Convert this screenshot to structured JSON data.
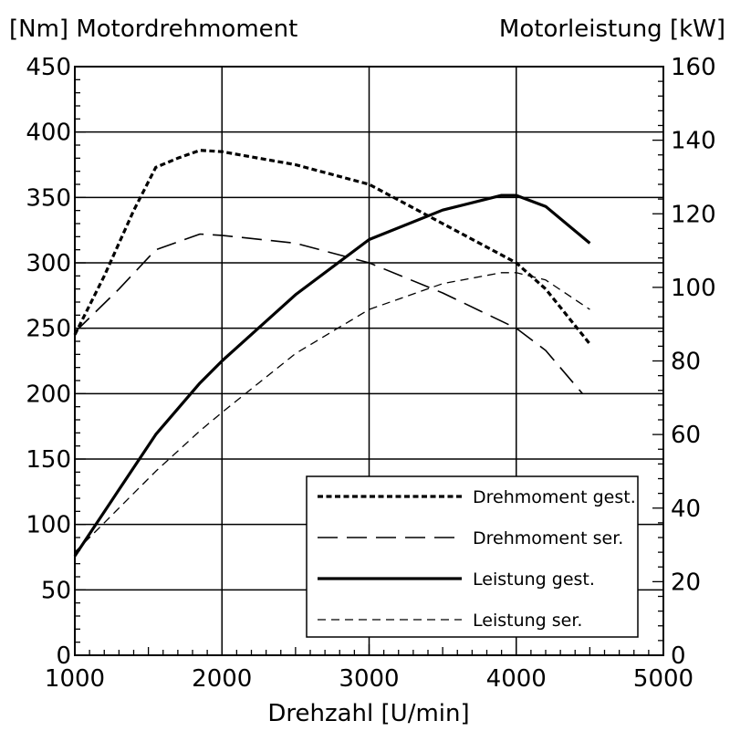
{
  "chart_data": {
    "type": "line",
    "left_axis_title": "[Nm] Motordrehmoment",
    "right_axis_title": "Motorleistung [kW]",
    "xlabel": "Drehzahl [U/min]",
    "xlim": [
      1000,
      5000
    ],
    "ylim_left": [
      0,
      450
    ],
    "ylim_right": [
      0,
      160
    ],
    "x_ticks": [
      "1000",
      "2000",
      "3000",
      "4000",
      "5000"
    ],
    "y_left_ticks": [
      "0",
      "50",
      "100",
      "150",
      "200",
      "250",
      "300",
      "350",
      "400",
      "450"
    ],
    "y_right_ticks": [
      "0",
      "20",
      "40",
      "60",
      "80",
      "100",
      "120",
      "140",
      "160"
    ],
    "grid": true,
    "legend_position": "bottom-right",
    "series": [
      {
        "name": "Drehmoment gest.",
        "axis": "left",
        "style": "dotted-thick",
        "color": "#000000",
        "x": [
          1000,
          1200,
          1400,
          1550,
          1700,
          1850,
          2000,
          2500,
          3000,
          3500,
          4000,
          4200,
          4500
        ],
        "y": [
          245,
          290,
          340,
          373,
          380,
          386,
          385,
          375,
          360,
          330,
          300,
          280,
          238
        ]
      },
      {
        "name": "Drehmoment ser.",
        "axis": "left",
        "style": "long-dash",
        "color": "#000000",
        "x": [
          1000,
          1300,
          1550,
          1850,
          2000,
          2500,
          3000,
          3500,
          4000,
          4200,
          4450
        ],
        "y": [
          247,
          280,
          310,
          322,
          321,
          315,
          300,
          277,
          250,
          233,
          200
        ]
      },
      {
        "name": "Leistung gest.",
        "axis": "right",
        "style": "solid-thick",
        "color": "#000000",
        "x": [
          1000,
          1250,
          1550,
          1850,
          2000,
          2500,
          3000,
          3500,
          3900,
          4000,
          4200,
          4500
        ],
        "y": [
          27,
          42,
          60,
          74,
          80,
          98,
          113,
          121,
          125,
          125,
          122,
          112
        ]
      },
      {
        "name": "Leistung ser.",
        "axis": "right",
        "style": "short-dash",
        "color": "#000000",
        "x": [
          1000,
          1550,
          1850,
          2000,
          2500,
          3000,
          3500,
          3900,
          4000,
          4200,
          4500
        ],
        "y": [
          28,
          50,
          61,
          66,
          82,
          94,
          101,
          104,
          104,
          102,
          94
        ]
      }
    ]
  }
}
